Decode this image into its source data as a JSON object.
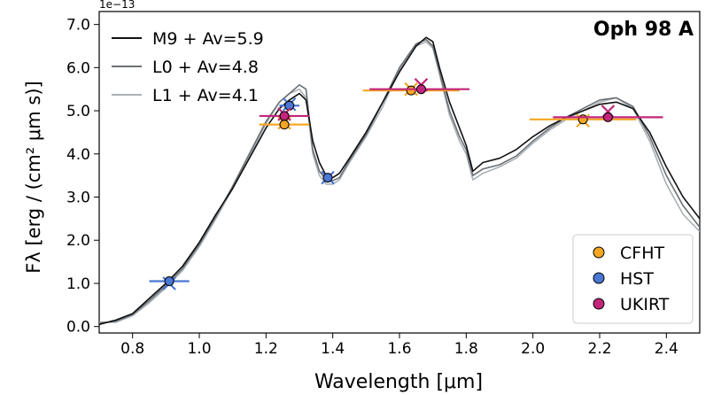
{
  "chart_data": {
    "type": "line",
    "title": "Oph 98 A",
    "xlabel": "Wavelength [μm]",
    "ylabel": "Fλ [erg / (cm² μm s)]",
    "y_offset_label": "1e−13",
    "xlim": [
      0.7,
      2.5
    ],
    "ylim": [
      -0.15,
      7.3
    ],
    "xticks": [
      0.8,
      1.0,
      1.2,
      1.4,
      1.6,
      1.8,
      2.0,
      2.2,
      2.4
    ],
    "xtick_labels": [
      "0.8",
      "1.0",
      "1.2",
      "1.4",
      "1.6",
      "1.8",
      "2.0",
      "2.2",
      "2.4"
    ],
    "yticks": [
      0.0,
      1.0,
      2.0,
      3.0,
      4.0,
      5.0,
      6.0,
      7.0
    ],
    "ytick_labels": [
      "0.0",
      "1.0",
      "2.0",
      "3.0",
      "4.0",
      "5.0",
      "6.0",
      "7.0"
    ],
    "series": [
      {
        "name": "M9 + Av=5.9",
        "color": "#111111",
        "x": [
          0.7,
          0.75,
          0.8,
          0.85,
          0.9,
          0.95,
          1.0,
          1.05,
          1.1,
          1.15,
          1.2,
          1.24,
          1.27,
          1.3,
          1.32,
          1.34,
          1.36,
          1.38,
          1.4,
          1.42,
          1.45,
          1.5,
          1.55,
          1.6,
          1.65,
          1.68,
          1.7,
          1.72,
          1.75,
          1.78,
          1.8,
          1.82,
          1.85,
          1.9,
          1.95,
          2.0,
          2.05,
          2.1,
          2.15,
          2.2,
          2.25,
          2.3,
          2.35,
          2.4,
          2.45,
          2.5
        ],
        "y": [
          0.05,
          0.15,
          0.3,
          0.65,
          1.0,
          1.4,
          1.95,
          2.6,
          3.2,
          3.9,
          4.6,
          5.05,
          5.25,
          5.4,
          5.25,
          4.3,
          3.8,
          3.5,
          3.45,
          3.55,
          3.9,
          4.5,
          5.2,
          5.9,
          6.5,
          6.7,
          6.6,
          6.0,
          5.2,
          4.6,
          4.2,
          3.6,
          3.8,
          3.9,
          4.1,
          4.4,
          4.65,
          4.85,
          5.0,
          5.15,
          5.2,
          5.05,
          4.5,
          3.7,
          3.0,
          2.5
        ]
      },
      {
        "name": "L0 + Av=4.8",
        "color": "#6b7075",
        "x": [
          0.7,
          0.75,
          0.8,
          0.85,
          0.9,
          0.95,
          1.0,
          1.05,
          1.1,
          1.15,
          1.2,
          1.24,
          1.27,
          1.3,
          1.32,
          1.34,
          1.36,
          1.38,
          1.4,
          1.42,
          1.45,
          1.5,
          1.55,
          1.6,
          1.65,
          1.68,
          1.7,
          1.72,
          1.75,
          1.78,
          1.8,
          1.82,
          1.85,
          1.9,
          1.95,
          2.0,
          2.05,
          2.1,
          2.15,
          2.2,
          2.25,
          2.3,
          2.35,
          2.4,
          2.45,
          2.5
        ],
        "y": [
          0.08,
          0.12,
          0.28,
          0.6,
          0.95,
          1.35,
          1.9,
          2.55,
          3.25,
          4.0,
          4.75,
          5.2,
          5.4,
          5.6,
          5.5,
          4.1,
          3.6,
          3.4,
          3.38,
          3.45,
          3.85,
          4.45,
          5.2,
          6.0,
          6.55,
          6.65,
          6.5,
          5.9,
          5.0,
          4.4,
          4.1,
          3.5,
          3.65,
          3.75,
          3.95,
          4.3,
          4.6,
          4.85,
          5.05,
          5.25,
          5.3,
          5.1,
          4.4,
          3.5,
          2.8,
          2.3
        ]
      },
      {
        "name": "L1 + Av=4.1",
        "color": "#a9b0b6",
        "x": [
          0.7,
          0.75,
          0.8,
          0.85,
          0.9,
          0.95,
          1.0,
          1.05,
          1.1,
          1.15,
          1.2,
          1.24,
          1.27,
          1.3,
          1.32,
          1.34,
          1.36,
          1.38,
          1.4,
          1.42,
          1.45,
          1.5,
          1.55,
          1.6,
          1.65,
          1.68,
          1.7,
          1.72,
          1.75,
          1.78,
          1.8,
          1.82,
          1.85,
          1.9,
          1.95,
          2.0,
          2.05,
          2.1,
          2.15,
          2.2,
          2.25,
          2.3,
          2.35,
          2.4,
          2.45,
          2.5
        ],
        "y": [
          0.1,
          0.1,
          0.25,
          0.55,
          0.9,
          1.3,
          1.85,
          2.5,
          3.2,
          3.95,
          4.7,
          5.2,
          5.4,
          5.5,
          5.3,
          4.0,
          3.5,
          3.3,
          3.3,
          3.4,
          3.8,
          4.4,
          5.1,
          5.95,
          6.5,
          6.6,
          6.45,
          5.85,
          4.9,
          4.3,
          4.0,
          3.4,
          3.55,
          3.7,
          3.9,
          4.25,
          4.55,
          4.8,
          5.0,
          5.2,
          5.3,
          5.05,
          4.3,
          3.3,
          2.6,
          2.2
        ]
      }
    ],
    "photometry": [
      {
        "name": "CFHT",
        "color": "#f5a623",
        "points": [
          {
            "x": 1.255,
            "y": 4.68,
            "xmin": 1.18,
            "xmax": 1.33,
            "model_y": 4.72
          },
          {
            "x": 1.635,
            "y": 5.47,
            "xmin": 1.49,
            "xmax": 1.78,
            "model_y": 5.5
          },
          {
            "x": 2.15,
            "y": 4.8,
            "xmin": 1.99,
            "xmax": 2.31,
            "model_y": 4.77
          }
        ]
      },
      {
        "name": "HST",
        "color": "#4a77d4",
        "points": [
          {
            "x": 0.91,
            "y": 1.05,
            "xmin": 0.85,
            "xmax": 0.97,
            "model_y": 1.0
          },
          {
            "x": 1.27,
            "y": 5.12,
            "xmin": 1.24,
            "xmax": 1.3,
            "model_y": 5.15
          },
          {
            "x": 1.385,
            "y": 3.45,
            "xmin": 1.37,
            "xmax": 1.4,
            "model_y": 3.45
          }
        ]
      },
      {
        "name": "UKIRT",
        "color": "#c2267b",
        "points": [
          {
            "x": 1.255,
            "y": 4.88,
            "xmin": 1.18,
            "xmax": 1.33,
            "model_y": 4.92
          },
          {
            "x": 1.665,
            "y": 5.5,
            "xmin": 1.51,
            "xmax": 1.81,
            "model_y": 5.6
          },
          {
            "x": 2.225,
            "y": 4.85,
            "xmin": 2.06,
            "xmax": 2.39,
            "model_y": 4.98
          }
        ]
      }
    ],
    "legend_lines_position": "upper-left",
    "legend_points_position": "lower-right"
  }
}
